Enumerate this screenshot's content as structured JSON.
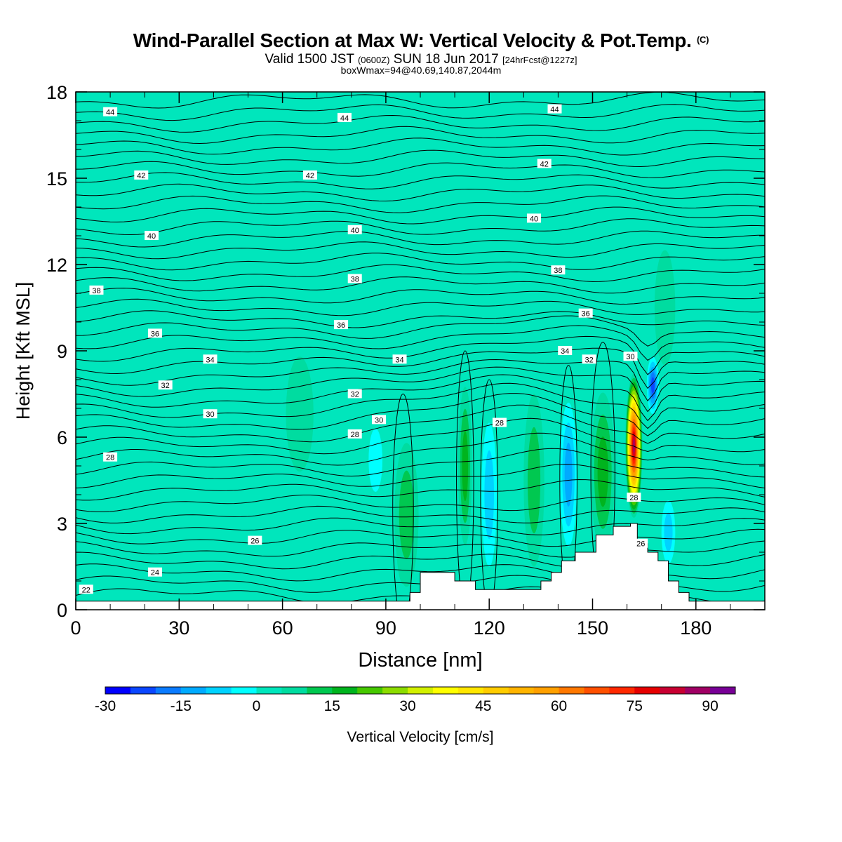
{
  "header": {
    "title": "Wind-Parallel Section at Max W: Vertical Velocity & Pot.Temp.",
    "copyright": "(C)",
    "valid_prefix": "Valid 1500 JST",
    "utc": "(0600Z)",
    "valid_date": "SUN 18 Jun 2017",
    "forecast": "[24hrFcst@1227z]",
    "boxwmax": "boxWmax=94@40.69,140.87,2044m"
  },
  "colors": {
    "background_field": "#00e6bc",
    "terrain": "#ffffff",
    "contour": "#000000",
    "plot_frame": "#000000"
  },
  "chart_data": {
    "type": "heatmap",
    "xlabel": "Distance [nm]",
    "ylabel": "Height [Kft MSL]",
    "xlim": [
      0,
      200
    ],
    "ylim": [
      0,
      18
    ],
    "x_ticks": [
      "0",
      "30",
      "60",
      "90",
      "120",
      "150",
      "180"
    ],
    "y_ticks": [
      "0",
      "3",
      "6",
      "9",
      "12",
      "15",
      "18"
    ],
    "colorbar": {
      "label": "Vertical Velocity [cm/s]",
      "tick_labels": [
        "-30",
        "-15",
        "0",
        "15",
        "30",
        "45",
        "60",
        "75",
        "90"
      ],
      "levels": [
        -30,
        -25,
        -20,
        -15,
        -10,
        -5,
        0,
        5,
        10,
        15,
        20,
        25,
        30,
        35,
        40,
        45,
        50,
        55,
        60,
        65,
        70,
        75,
        80,
        85,
        90,
        95
      ],
      "colors": [
        "#0000ff",
        "#0a46ff",
        "#0a7bff",
        "#00aaff",
        "#00d2ff",
        "#00ffff",
        "#00e6bc",
        "#00dca0",
        "#00c850",
        "#00b41e",
        "#46c800",
        "#8cdc00",
        "#d2f000",
        "#ffff00",
        "#ffe600",
        "#ffcc00",
        "#ffb400",
        "#ffa000",
        "#ff7800",
        "#ff5000",
        "#ff2800",
        "#e60000",
        "#c80032",
        "#a00064",
        "#780096"
      ]
    },
    "w_features": [
      {
        "x": 65,
        "y": 6.8,
        "w": 8,
        "h": 4,
        "value": 5
      },
      {
        "x": 95,
        "y": 2.5,
        "w": 4,
        "h": 3.2,
        "value": 20
      },
      {
        "x": 96,
        "y": 3.3,
        "w": 7,
        "h": 5,
        "value": 10
      },
      {
        "x": 87,
        "y": 5.2,
        "w": 4,
        "h": 2.2,
        "value": -5
      },
      {
        "x": 113,
        "y": 5,
        "w": 4,
        "h": 5.5,
        "value": 15
      },
      {
        "x": 120,
        "y": 4,
        "w": 4.5,
        "h": 5,
        "value": -10
      },
      {
        "x": 133,
        "y": 4.5,
        "w": 6,
        "h": 6,
        "value": 10
      },
      {
        "x": 143,
        "y": 4.7,
        "w": 5,
        "h": 5,
        "value": -15
      },
      {
        "x": 153,
        "y": 4.8,
        "w": 7,
        "h": 5.5,
        "value": 15
      },
      {
        "x": 162,
        "y": 5.7,
        "w": 5,
        "h": 5,
        "value": 85
      },
      {
        "x": 167.5,
        "y": 7.8,
        "w": 3.5,
        "h": 2,
        "value": -25
      },
      {
        "x": 172,
        "y": 2.7,
        "w": 4,
        "h": 2.2,
        "value": -10
      },
      {
        "x": 171,
        "y": 10.5,
        "w": 6,
        "h": 4,
        "value": 5
      }
    ],
    "theta_labels": [
      {
        "x": 10,
        "y": 17.3,
        "text": "44"
      },
      {
        "x": 78,
        "y": 17.1,
        "text": "44"
      },
      {
        "x": 139,
        "y": 17.4,
        "text": "44"
      },
      {
        "x": 19,
        "y": 15.1,
        "text": "42"
      },
      {
        "x": 68,
        "y": 15.1,
        "text": "42"
      },
      {
        "x": 136,
        "y": 15.5,
        "text": "42"
      },
      {
        "x": 22,
        "y": 13.0,
        "text": "40"
      },
      {
        "x": 81,
        "y": 13.2,
        "text": "40"
      },
      {
        "x": 133,
        "y": 13.6,
        "text": "40"
      },
      {
        "x": 6,
        "y": 11.1,
        "text": "38"
      },
      {
        "x": 81,
        "y": 11.5,
        "text": "38"
      },
      {
        "x": 140,
        "y": 11.8,
        "text": "38"
      },
      {
        "x": 23,
        "y": 9.6,
        "text": "36"
      },
      {
        "x": 77,
        "y": 9.9,
        "text": "36"
      },
      {
        "x": 148,
        "y": 10.3,
        "text": "36"
      },
      {
        "x": 39,
        "y": 8.7,
        "text": "34"
      },
      {
        "x": 94,
        "y": 8.7,
        "text": "34"
      },
      {
        "x": 142,
        "y": 9.0,
        "text": "34"
      },
      {
        "x": 26,
        "y": 7.8,
        "text": "32"
      },
      {
        "x": 81,
        "y": 7.5,
        "text": "32"
      },
      {
        "x": 149,
        "y": 8.7,
        "text": "32"
      },
      {
        "x": 39,
        "y": 6.8,
        "text": "30"
      },
      {
        "x": 88,
        "y": 6.6,
        "text": "30"
      },
      {
        "x": 161,
        "y": 8.8,
        "text": "30"
      },
      {
        "x": 10,
        "y": 5.3,
        "text": "28"
      },
      {
        "x": 81,
        "y": 6.1,
        "text": "28"
      },
      {
        "x": 123,
        "y": 6.5,
        "text": "28"
      },
      {
        "x": 162,
        "y": 3.9,
        "text": "28"
      },
      {
        "x": 52,
        "y": 2.4,
        "text": "26"
      },
      {
        "x": 164,
        "y": 2.3,
        "text": "26"
      },
      {
        "x": 23,
        "y": 1.3,
        "text": "24"
      },
      {
        "x": 3,
        "y": 0.7,
        "text": "22"
      }
    ],
    "terrain": [
      [
        0,
        0.3
      ],
      [
        97,
        0.3
      ],
      [
        97,
        0.6
      ],
      [
        100,
        0.6
      ],
      [
        100,
        1.3
      ],
      [
        110,
        1.3
      ],
      [
        110,
        1.0
      ],
      [
        116,
        1.0
      ],
      [
        116,
        0.7
      ],
      [
        135,
        0.7
      ],
      [
        135,
        1.0
      ],
      [
        138,
        1.0
      ],
      [
        138,
        1.3
      ],
      [
        141,
        1.3
      ],
      [
        141,
        1.7
      ],
      [
        145,
        1.7
      ],
      [
        145,
        2.0
      ],
      [
        151,
        2.0
      ],
      [
        151,
        2.6
      ],
      [
        156,
        2.6
      ],
      [
        156,
        2.9
      ],
      [
        161,
        2.9
      ],
      [
        161,
        3.0
      ],
      [
        163,
        3.0
      ],
      [
        163,
        2.3
      ],
      [
        166,
        2.3
      ],
      [
        166,
        2.0
      ],
      [
        169,
        2.0
      ],
      [
        169,
        1.7
      ],
      [
        172,
        1.7
      ],
      [
        172,
        1.0
      ],
      [
        175,
        1.0
      ],
      [
        175,
        0.6
      ],
      [
        178,
        0.6
      ],
      [
        178,
        0.3
      ],
      [
        200,
        0.3
      ]
    ]
  }
}
